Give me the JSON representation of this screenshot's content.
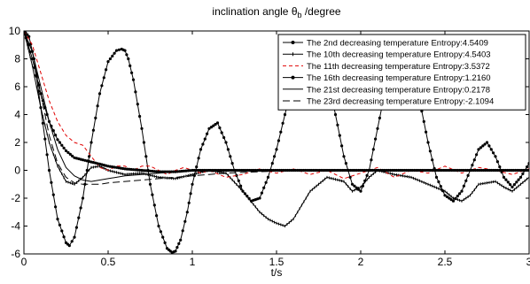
{
  "chart_data": {
    "type": "line",
    "title": "inclination angle θ",
    "title_subscript": "b",
    "title_suffix": " /degree",
    "xlabel": "t/s",
    "ylabel": "",
    "xlim": [
      0,
      3
    ],
    "ylim": [
      -6,
      10
    ],
    "x_ticks": [
      0,
      0.5,
      1,
      1.5,
      2,
      2.5,
      3
    ],
    "x_tick_labels": [
      "0",
      "0.5",
      "1",
      "1.5",
      "2",
      "2.5",
      "3"
    ],
    "y_ticks": [
      -6,
      -4,
      -2,
      0,
      2,
      4,
      6,
      8,
      10
    ],
    "y_tick_labels": [
      "-6",
      "-4",
      "-2",
      "0",
      "2",
      "4",
      "6",
      "8",
      "10"
    ],
    "grid": false,
    "legend_position": "top-right",
    "series": [
      {
        "name": "The 2nd decreasing temperature Entropy:4.5409",
        "color": "#000000",
        "dash": "",
        "marker": "dot",
        "width": 1.0,
        "x": [
          0,
          0.03,
          0.06,
          0.1,
          0.15,
          0.2,
          0.25,
          0.27,
          0.3,
          0.35,
          0.4,
          0.45,
          0.5,
          0.55,
          0.58,
          0.6,
          0.62,
          0.65,
          0.7,
          0.75,
          0.8,
          0.85,
          0.88,
          0.9,
          0.93,
          0.97,
          1.0,
          1.05,
          1.1,
          1.15,
          1.2,
          1.25,
          1.3,
          1.35,
          1.4,
          1.45,
          1.5,
          1.55,
          1.6,
          1.65,
          1.7,
          1.75,
          1.8,
          1.85,
          1.9,
          1.95,
          2.0,
          2.05,
          2.1,
          2.15,
          2.2,
          2.25,
          2.3,
          2.35,
          2.4,
          2.45,
          2.5,
          2.55,
          2.6,
          2.65,
          2.7,
          2.75,
          2.8,
          2.85,
          2.9,
          2.95,
          3.0
        ],
        "y": [
          10,
          9.6,
          8.0,
          4.5,
          0.0,
          -3.5,
          -5.2,
          -5.4,
          -4.8,
          -2.0,
          2.0,
          5.5,
          7.8,
          8.6,
          8.7,
          8.6,
          8.0,
          6.5,
          3.0,
          -1.0,
          -4.0,
          -5.6,
          -5.9,
          -5.8,
          -5.0,
          -3.0,
          -1.0,
          1.5,
          3.0,
          3.4,
          2.0,
          0.0,
          -1.5,
          -2.2,
          -2.0,
          -0.5,
          1.5,
          4.0,
          6.5,
          8.5,
          9.5,
          9.0,
          7.0,
          4.0,
          1.0,
          -1.0,
          -1.5,
          0.0,
          3.0,
          6.0,
          8.0,
          8.5,
          7.5,
          5.0,
          2.0,
          -0.5,
          -1.8,
          -2.2,
          -1.5,
          0.0,
          1.5,
          2.0,
          1.0,
          -0.5,
          -1.2,
          -0.5,
          0.5
        ]
      },
      {
        "name": "The 10th decreasing temperature Entropy:4.5403",
        "color": "#000000",
        "dash": "",
        "marker": "tick",
        "width": 1.0,
        "x": [
          0,
          0.05,
          0.1,
          0.15,
          0.2,
          0.25,
          0.3,
          0.35,
          0.4,
          0.45,
          0.5,
          0.6,
          0.7,
          0.8,
          0.9,
          1.0,
          1.1,
          1.2,
          1.3,
          1.4,
          1.45,
          1.5,
          1.55,
          1.6,
          1.7,
          1.8,
          1.9,
          1.95,
          2.0,
          2.05,
          2.1,
          2.2,
          2.3,
          2.4,
          2.5,
          2.55,
          2.6,
          2.65,
          2.7,
          2.8,
          2.85,
          2.9,
          2.95,
          3.0
        ],
        "y": [
          10,
          7.5,
          4.5,
          2.0,
          0.3,
          -0.8,
          -1.0,
          -0.5,
          0.2,
          0.3,
          0.0,
          -0.3,
          -0.2,
          -0.5,
          -0.6,
          -0.3,
          0.0,
          -0.2,
          -1.5,
          -3.0,
          -3.5,
          -3.8,
          -4.0,
          -3.5,
          -1.5,
          -0.5,
          -0.8,
          -1.5,
          -1.2,
          -0.5,
          0.0,
          -0.3,
          -0.5,
          -1.0,
          -1.5,
          -2.0,
          -2.2,
          -1.8,
          -1.0,
          -0.8,
          -1.2,
          -1.5,
          -1.0,
          -0.5
        ]
      },
      {
        "name": "The 11th decreasing temperature Entropy:3.5372",
        "color": "#e00000",
        "dash": "4,3",
        "marker": "",
        "width": 1.0,
        "x": [
          0,
          0.05,
          0.1,
          0.15,
          0.2,
          0.25,
          0.3,
          0.35,
          0.4,
          0.45,
          0.5,
          0.55,
          0.6,
          0.65,
          0.7,
          0.75,
          0.8,
          0.85,
          0.9,
          0.95,
          1.0,
          1.05,
          1.1,
          1.2,
          1.3,
          1.4,
          1.5,
          1.6,
          1.7,
          1.8,
          1.9,
          2.0,
          2.1,
          2.2,
          2.3,
          2.4,
          2.5,
          2.6,
          2.7,
          2.8,
          2.9,
          3.0
        ],
        "y": [
          10,
          9.0,
          7.0,
          5.0,
          3.5,
          2.5,
          2.0,
          1.8,
          1.0,
          0.2,
          0.0,
          0.3,
          0.3,
          0.0,
          0.3,
          0.3,
          0.0,
          -0.3,
          0.0,
          0.2,
          0.0,
          -0.2,
          0.0,
          -0.5,
          -0.3,
          0.1,
          -0.2,
          0.1,
          -0.3,
          0.0,
          -0.6,
          -0.2,
          0.2,
          -0.5,
          0.0,
          -0.2,
          0.3,
          -0.2,
          0.2,
          0.0,
          -0.3,
          0.1
        ]
      },
      {
        "name": "The 16th decreasing temperature Entropy:1.2160",
        "color": "#000000",
        "dash": "",
        "marker": "dot",
        "width": 1.0,
        "x": [
          0,
          0.05,
          0.1,
          0.15,
          0.2,
          0.25,
          0.3,
          0.4,
          0.5,
          0.6,
          0.7,
          0.8,
          0.9,
          1.0,
          1.2,
          1.4,
          1.6,
          1.8,
          2.0,
          2.2,
          2.4,
          2.6,
          2.8,
          3.0
        ],
        "y": [
          10,
          8.0,
          5.5,
          3.5,
          2.2,
          1.4,
          0.9,
          0.6,
          0.3,
          0.1,
          0.0,
          -0.1,
          -0.1,
          0.0,
          0.0,
          0.0,
          0.0,
          0.0,
          0.0,
          0.0,
          0.0,
          0.0,
          0.0,
          0.0
        ]
      },
      {
        "name": "The 21st decreasing temperature Entropy:0.2178",
        "color": "#000000",
        "dash": "",
        "marker": "",
        "width": 1.0,
        "x": [
          0,
          0.05,
          0.1,
          0.15,
          0.2,
          0.25,
          0.3,
          0.35,
          0.4,
          0.5,
          0.6,
          0.7,
          0.8,
          0.9,
          1.0,
          1.2,
          1.4,
          1.6,
          1.8,
          2.0,
          2.2,
          2.4,
          2.6,
          2.8,
          3.0
        ],
        "y": [
          10,
          8.5,
          6.0,
          3.5,
          1.5,
          0.2,
          -0.4,
          -0.7,
          -0.8,
          -0.6,
          -0.4,
          -0.3,
          -0.2,
          -0.1,
          0.0,
          0.0,
          0.0,
          0.0,
          0.0,
          0.0,
          0.0,
          0.0,
          0.0,
          0.0,
          0.0
        ]
      },
      {
        "name": "The 23rd decreasing temperature Entropy:-2.1094",
        "color": "#000000",
        "dash": "8,4",
        "marker": "",
        "width": 1.0,
        "x": [
          0,
          0.05,
          0.1,
          0.15,
          0.2,
          0.25,
          0.3,
          0.35,
          0.4,
          0.45,
          0.5,
          0.6,
          0.7,
          0.8,
          0.9,
          1.0,
          1.1,
          1.2,
          1.4,
          1.6,
          1.8,
          2.0,
          2.2,
          2.4,
          2.6,
          2.8,
          3.0
        ],
        "y": [
          10,
          8.5,
          5.5,
          2.5,
          0.5,
          -0.5,
          -0.9,
          -1.0,
          -1.0,
          -1.0,
          -0.9,
          -0.8,
          -0.7,
          -0.6,
          -0.5,
          -0.4,
          -0.3,
          -0.2,
          -0.1,
          0.0,
          0.0,
          0.0,
          0.0,
          0.0,
          0.0,
          0.0,
          0.0
        ]
      }
    ]
  }
}
